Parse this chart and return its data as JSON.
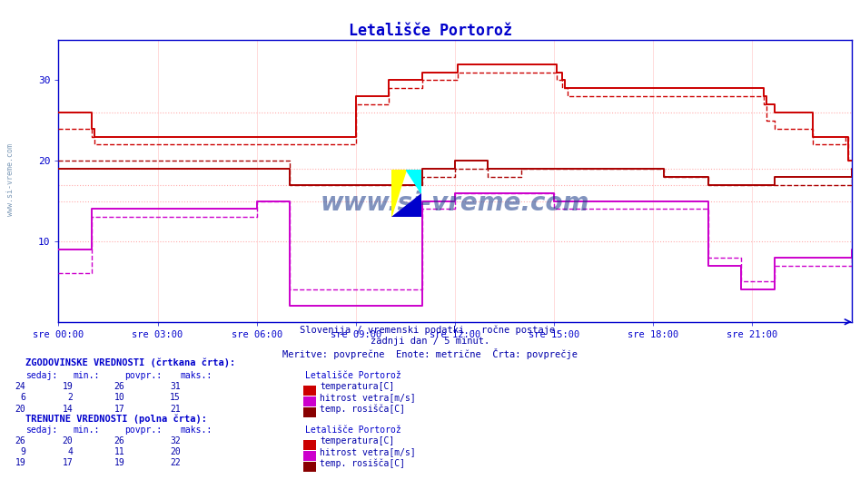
{
  "title": "Letališče Portorož",
  "title_color": "#0000cc",
  "title_fontsize": 12,
  "bg_color": "#ffffff",
  "plot_bg_color": "#ffffff",
  "axis_color": "#0000cc",
  "xlim": [
    0,
    288
  ],
  "ylim": [
    0,
    35
  ],
  "yticks": [
    10,
    20,
    30
  ],
  "xtick_labels": [
    "sre 00:00",
    "sre 03:00",
    "sre 06:00",
    "sre 09:00",
    "sre 12:00",
    "sre 15:00",
    "sre 18:00",
    "sre 21:00"
  ],
  "xtick_positions": [
    0,
    36,
    72,
    108,
    144,
    180,
    216,
    252
  ],
  "subtitle1": "Slovenija / vremenski podatki - ročne postaje.",
  "subtitle2": "zadnji dan / 5 minut.",
  "subtitle3": "Meritve: povprečne  Enote: metrične  Črta: povprečje",
  "subtitle_color": "#0000aa",
  "watermark": "www.si-vreme.com",
  "watermark_color": "#1a3a8a",
  "temp_solid_color": "#cc0000",
  "wind_solid_color": "#cc00cc",
  "dew_hist_color": "#aa0000",
  "dew_curr_color": "#aa0000",
  "hlines_red": [
    26,
    19
  ],
  "hlines_pink": [
    10,
    15,
    17
  ],
  "table_header_color": "#0000cc",
  "table_value_color": "#0000aa",
  "table_label_color": "#0000aa",
  "left_label_color": "#6688aa",
  "temp_hist_data": [
    24,
    24,
    24,
    24,
    24,
    24,
    24,
    24,
    24,
    24,
    24,
    24,
    23,
    22,
    22,
    22,
    22,
    22,
    22,
    22,
    22,
    22,
    22,
    22,
    22,
    22,
    22,
    22,
    22,
    22,
    22,
    22,
    22,
    22,
    22,
    22,
    22,
    22,
    22,
    22,
    22,
    22,
    22,
    22,
    22,
    22,
    22,
    22,
    22,
    22,
    22,
    22,
    22,
    22,
    22,
    22,
    22,
    22,
    22,
    22,
    22,
    22,
    22,
    22,
    22,
    22,
    22,
    22,
    22,
    22,
    22,
    22,
    22,
    22,
    22,
    22,
    22,
    22,
    22,
    22,
    22,
    22,
    22,
    22,
    22,
    22,
    22,
    22,
    22,
    22,
    22,
    22,
    22,
    22,
    22,
    22,
    22,
    22,
    22,
    22,
    22,
    22,
    22,
    22,
    22,
    22,
    22,
    22,
    27,
    27,
    27,
    27,
    27,
    27,
    27,
    27,
    27,
    27,
    27,
    27,
    29,
    29,
    29,
    29,
    29,
    29,
    29,
    29,
    29,
    29,
    29,
    29,
    30,
    30,
    30,
    30,
    30,
    30,
    30,
    30,
    30,
    30,
    30,
    30,
    30,
    31,
    31,
    31,
    31,
    31,
    31,
    31,
    31,
    31,
    31,
    31,
    31,
    31,
    31,
    31,
    31,
    31,
    31,
    31,
    31,
    31,
    31,
    31,
    31,
    31,
    31,
    31,
    31,
    31,
    31,
    31,
    31,
    31,
    31,
    31,
    31,
    30,
    30,
    29,
    29,
    28,
    28,
    28,
    28,
    28,
    28,
    28,
    28,
    28,
    28,
    28,
    28,
    28,
    28,
    28,
    28,
    28,
    28,
    28,
    28,
    28,
    28,
    28,
    28,
    28,
    28,
    28,
    28,
    28,
    28,
    28,
    28,
    28,
    28,
    28,
    28,
    28,
    28,
    28,
    28,
    28,
    28,
    28,
    28,
    28,
    28,
    28,
    28,
    28,
    28,
    28,
    28,
    28,
    28,
    28,
    28,
    28,
    28,
    28,
    28,
    28,
    28,
    28,
    28,
    28,
    28,
    28,
    28,
    28,
    28,
    28,
    27,
    25,
    25,
    25,
    24,
    24,
    24,
    24,
    24,
    24,
    24,
    24,
    24,
    24,
    24,
    24,
    24,
    24,
    22,
    22,
    22,
    22,
    22,
    22,
    22,
    22,
    22,
    22,
    22,
    22,
    23,
    20,
    20,
    20
  ],
  "wind_hist_data": [
    6,
    6,
    6,
    6,
    6,
    6,
    6,
    6,
    6,
    6,
    6,
    6,
    13,
    13,
    13,
    13,
    13,
    13,
    13,
    13,
    13,
    13,
    13,
    13,
    13,
    13,
    13,
    13,
    13,
    13,
    13,
    13,
    13,
    13,
    13,
    13,
    13,
    13,
    13,
    13,
    13,
    13,
    13,
    13,
    13,
    13,
    13,
    13,
    13,
    13,
    13,
    13,
    13,
    13,
    13,
    13,
    13,
    13,
    13,
    13,
    13,
    13,
    13,
    13,
    13,
    13,
    13,
    13,
    13,
    13,
    13,
    13,
    15,
    15,
    15,
    15,
    15,
    15,
    15,
    15,
    15,
    15,
    15,
    15,
    4,
    4,
    4,
    4,
    4,
    4,
    4,
    4,
    4,
    4,
    4,
    4,
    4,
    4,
    4,
    4,
    4,
    4,
    4,
    4,
    4,
    4,
    4,
    4,
    4,
    4,
    4,
    4,
    4,
    4,
    4,
    4,
    4,
    4,
    4,
    4,
    4,
    4,
    4,
    4,
    4,
    4,
    4,
    4,
    4,
    4,
    4,
    4,
    14,
    14,
    14,
    14,
    14,
    14,
    14,
    14,
    14,
    14,
    14,
    14,
    16,
    16,
    16,
    16,
    16,
    16,
    16,
    16,
    16,
    16,
    16,
    16,
    16,
    16,
    16,
    16,
    16,
    16,
    16,
    16,
    16,
    16,
    16,
    16,
    16,
    16,
    16,
    16,
    16,
    16,
    16,
    16,
    16,
    16,
    16,
    16,
    14,
    14,
    14,
    14,
    14,
    14,
    14,
    14,
    14,
    14,
    14,
    14,
    14,
    14,
    14,
    14,
    14,
    14,
    14,
    14,
    14,
    14,
    14,
    14,
    14,
    14,
    14,
    14,
    14,
    14,
    14,
    14,
    14,
    14,
    14,
    14,
    14,
    14,
    14,
    14,
    14,
    14,
    14,
    14,
    14,
    14,
    14,
    14,
    14,
    14,
    14,
    14,
    14,
    14,
    14,
    14,
    8,
    8,
    8,
    8,
    8,
    8,
    8,
    8,
    8,
    8,
    8,
    8,
    5,
    5,
    5,
    5,
    5,
    5,
    5,
    5,
    5,
    5,
    5,
    5,
    7,
    7,
    7,
    7,
    7,
    7,
    7,
    7,
    7,
    7,
    7,
    7,
    7,
    7,
    7,
    7,
    7,
    7,
    7,
    7,
    7,
    7,
    7,
    7,
    7,
    7,
    7,
    7,
    9,
    9
  ],
  "dew_hist_data": [
    20,
    20,
    20,
    20,
    20,
    20,
    20,
    20,
    20,
    20,
    20,
    20,
    20,
    20,
    20,
    20,
    20,
    20,
    20,
    20,
    20,
    20,
    20,
    20,
    20,
    20,
    20,
    20,
    20,
    20,
    20,
    20,
    20,
    20,
    20,
    20,
    20,
    20,
    20,
    20,
    20,
    20,
    20,
    20,
    20,
    20,
    20,
    20,
    20,
    20,
    20,
    20,
    20,
    20,
    20,
    20,
    20,
    20,
    20,
    20,
    20,
    20,
    20,
    20,
    20,
    20,
    20,
    20,
    20,
    20,
    20,
    20,
    20,
    20,
    20,
    20,
    20,
    20,
    20,
    20,
    20,
    20,
    20,
    20,
    17,
    17,
    17,
    17,
    17,
    17,
    17,
    17,
    17,
    17,
    17,
    17,
    17,
    17,
    17,
    17,
    17,
    17,
    17,
    17,
    17,
    17,
    17,
    17,
    17,
    17,
    17,
    17,
    17,
    17,
    17,
    17,
    17,
    17,
    17,
    17,
    17,
    17,
    17,
    17,
    17,
    17,
    17,
    17,
    17,
    17,
    17,
    17,
    18,
    18,
    18,
    18,
    18,
    18,
    18,
    18,
    18,
    18,
    18,
    18,
    19,
    19,
    19,
    19,
    19,
    19,
    19,
    19,
    19,
    19,
    19,
    19,
    18,
    18,
    18,
    18,
    18,
    18,
    18,
    18,
    18,
    18,
    18,
    18,
    19,
    19,
    19,
    19,
    19,
    19,
    19,
    19,
    19,
    19,
    19,
    19,
    19,
    19,
    19,
    19,
    19,
    19,
    19,
    19,
    19,
    19,
    19,
    19,
    19,
    19,
    19,
    19,
    19,
    19,
    19,
    19,
    19,
    19,
    19,
    19,
    19,
    19,
    19,
    19,
    19,
    19,
    19,
    19,
    19,
    19,
    19,
    19,
    19,
    19,
    19,
    19,
    18,
    18,
    18,
    18,
    18,
    18,
    18,
    18,
    18,
    18,
    18,
    18,
    18,
    18,
    18,
    18,
    17,
    17,
    17,
    17,
    17,
    17,
    17,
    17,
    17,
    17,
    17,
    17,
    17,
    17,
    17,
    17,
    17,
    17,
    17,
    17,
    17,
    17,
    17,
    17,
    17,
    17,
    17,
    17,
    17,
    17,
    17,
    17,
    17,
    17,
    17,
    17,
    17,
    17,
    17,
    17,
    17,
    17,
    17,
    17,
    17,
    17,
    17,
    17,
    17,
    17,
    17,
    17,
    19,
    19
  ],
  "temp_curr_data": [
    26,
    26,
    26,
    26,
    26,
    26,
    26,
    26,
    26,
    26,
    26,
    26,
    24,
    23,
    23,
    23,
    23,
    23,
    23,
    23,
    23,
    23,
    23,
    23,
    23,
    23,
    23,
    23,
    23,
    23,
    23,
    23,
    23,
    23,
    23,
    23,
    23,
    23,
    23,
    23,
    23,
    23,
    23,
    23,
    23,
    23,
    23,
    23,
    23,
    23,
    23,
    23,
    23,
    23,
    23,
    23,
    23,
    23,
    23,
    23,
    23,
    23,
    23,
    23,
    23,
    23,
    23,
    23,
    23,
    23,
    23,
    23,
    23,
    23,
    23,
    23,
    23,
    23,
    23,
    23,
    23,
    23,
    23,
    23,
    23,
    23,
    23,
    23,
    23,
    23,
    23,
    23,
    23,
    23,
    23,
    23,
    23,
    23,
    23,
    23,
    23,
    23,
    23,
    23,
    23,
    23,
    23,
    23,
    28,
    28,
    28,
    28,
    28,
    28,
    28,
    28,
    28,
    28,
    28,
    28,
    30,
    30,
    30,
    30,
    30,
    30,
    30,
    30,
    30,
    30,
    30,
    30,
    31,
    31,
    31,
    31,
    31,
    31,
    31,
    31,
    31,
    31,
    31,
    31,
    31,
    32,
    32,
    32,
    32,
    32,
    32,
    32,
    32,
    32,
    32,
    32,
    32,
    32,
    32,
    32,
    32,
    32,
    32,
    32,
    32,
    32,
    32,
    32,
    32,
    32,
    32,
    32,
    32,
    32,
    32,
    32,
    32,
    32,
    32,
    32,
    32,
    31,
    31,
    30,
    29,
    29,
    29,
    29,
    29,
    29,
    29,
    29,
    29,
    29,
    29,
    29,
    29,
    29,
    29,
    29,
    29,
    29,
    29,
    29,
    29,
    29,
    29,
    29,
    29,
    29,
    29,
    29,
    29,
    29,
    29,
    29,
    29,
    29,
    29,
    29,
    29,
    29,
    29,
    29,
    29,
    29,
    29,
    29,
    29,
    29,
    29,
    29,
    29,
    29,
    29,
    29,
    29,
    29,
    29,
    29,
    29,
    29,
    29,
    29,
    29,
    29,
    29,
    29,
    29,
    29,
    29,
    29,
    29,
    29,
    29,
    29,
    28,
    27,
    27,
    27,
    26,
    26,
    26,
    26,
    26,
    26,
    26,
    26,
    26,
    26,
    26,
    26,
    26,
    26,
    23,
    23,
    23,
    23,
    23,
    23,
    23,
    23,
    23,
    23,
    23,
    23,
    23,
    20,
    20,
    20
  ],
  "wind_curr_data": [
    9,
    9,
    9,
    9,
    9,
    9,
    9,
    9,
    9,
    9,
    9,
    9,
    14,
    14,
    14,
    14,
    14,
    14,
    14,
    14,
    14,
    14,
    14,
    14,
    14,
    14,
    14,
    14,
    14,
    14,
    14,
    14,
    14,
    14,
    14,
    14,
    14,
    14,
    14,
    14,
    14,
    14,
    14,
    14,
    14,
    14,
    14,
    14,
    14,
    14,
    14,
    14,
    14,
    14,
    14,
    14,
    14,
    14,
    14,
    14,
    14,
    14,
    14,
    14,
    14,
    14,
    14,
    14,
    14,
    14,
    14,
    14,
    15,
    15,
    15,
    15,
    15,
    15,
    15,
    15,
    15,
    15,
    15,
    15,
    2,
    2,
    2,
    2,
    2,
    2,
    2,
    2,
    2,
    2,
    2,
    2,
    2,
    2,
    2,
    2,
    2,
    2,
    2,
    2,
    2,
    2,
    2,
    2,
    2,
    2,
    2,
    2,
    2,
    2,
    2,
    2,
    2,
    2,
    2,
    2,
    2,
    2,
    2,
    2,
    2,
    2,
    2,
    2,
    2,
    2,
    2,
    2,
    15,
    15,
    15,
    15,
    15,
    15,
    15,
    15,
    15,
    15,
    15,
    15,
    16,
    16,
    16,
    16,
    16,
    16,
    16,
    16,
    16,
    16,
    16,
    16,
    16,
    16,
    16,
    16,
    16,
    16,
    16,
    16,
    16,
    16,
    16,
    16,
    16,
    16,
    16,
    16,
    16,
    16,
    16,
    16,
    16,
    16,
    16,
    16,
    15,
    15,
    15,
    15,
    15,
    15,
    15,
    15,
    15,
    15,
    15,
    15,
    15,
    15,
    15,
    15,
    15,
    15,
    15,
    15,
    15,
    15,
    15,
    15,
    15,
    15,
    15,
    15,
    15,
    15,
    15,
    15,
    15,
    15,
    15,
    15,
    15,
    15,
    15,
    15,
    15,
    15,
    15,
    15,
    15,
    15,
    15,
    15,
    15,
    15,
    15,
    15,
    15,
    15,
    15,
    15,
    7,
    7,
    7,
    7,
    7,
    7,
    7,
    7,
    7,
    7,
    7,
    7,
    4,
    4,
    4,
    4,
    4,
    4,
    4,
    4,
    4,
    4,
    4,
    4,
    8,
    8,
    8,
    8,
    8,
    8,
    8,
    8,
    8,
    8,
    8,
    8,
    8,
    8,
    8,
    8,
    8,
    8,
    8,
    8,
    8,
    8,
    8,
    8,
    8,
    8,
    8,
    8,
    9,
    9
  ],
  "dew_curr_data": [
    19,
    19,
    19,
    19,
    19,
    19,
    19,
    19,
    19,
    19,
    19,
    19,
    19,
    19,
    19,
    19,
    19,
    19,
    19,
    19,
    19,
    19,
    19,
    19,
    19,
    19,
    19,
    19,
    19,
    19,
    19,
    19,
    19,
    19,
    19,
    19,
    19,
    19,
    19,
    19,
    19,
    19,
    19,
    19,
    19,
    19,
    19,
    19,
    19,
    19,
    19,
    19,
    19,
    19,
    19,
    19,
    19,
    19,
    19,
    19,
    19,
    19,
    19,
    19,
    19,
    19,
    19,
    19,
    19,
    19,
    19,
    19,
    19,
    19,
    19,
    19,
    19,
    19,
    19,
    19,
    19,
    19,
    19,
    19,
    17,
    17,
    17,
    17,
    17,
    17,
    17,
    17,
    17,
    17,
    17,
    17,
    17,
    17,
    17,
    17,
    17,
    17,
    17,
    17,
    17,
    17,
    17,
    17,
    17,
    17,
    17,
    17,
    17,
    17,
    17,
    17,
    17,
    17,
    17,
    17,
    17,
    17,
    17,
    17,
    17,
    17,
    17,
    17,
    17,
    17,
    17,
    17,
    19,
    19,
    19,
    19,
    19,
    19,
    19,
    19,
    19,
    19,
    19,
    19,
    20,
    20,
    20,
    20,
    20,
    20,
    20,
    20,
    20,
    20,
    20,
    20,
    19,
    19,
    19,
    19,
    19,
    19,
    19,
    19,
    19,
    19,
    19,
    19,
    19,
    19,
    19,
    19,
    19,
    19,
    19,
    19,
    19,
    19,
    19,
    19,
    19,
    19,
    19,
    19,
    19,
    19,
    19,
    19,
    19,
    19,
    19,
    19,
    19,
    19,
    19,
    19,
    19,
    19,
    19,
    19,
    19,
    19,
    19,
    19,
    19,
    19,
    19,
    19,
    19,
    19,
    19,
    19,
    19,
    19,
    19,
    19,
    19,
    19,
    19,
    19,
    18,
    18,
    18,
    18,
    18,
    18,
    18,
    18,
    18,
    18,
    18,
    18,
    18,
    18,
    18,
    18,
    17,
    17,
    17,
    17,
    17,
    17,
    17,
    17,
    17,
    17,
    17,
    17,
    17,
    17,
    17,
    17,
    17,
    17,
    17,
    17,
    17,
    17,
    17,
    17,
    18,
    18,
    18,
    18,
    18,
    18,
    18,
    18,
    18,
    18,
    18,
    18,
    18,
    18,
    18,
    18,
    18,
    18,
    18,
    18,
    18,
    18,
    18,
    18,
    18,
    18,
    18,
    18,
    19,
    19
  ],
  "hist_table": {
    "sedaj": [
      24,
      6,
      20
    ],
    "min": [
      19,
      2,
      14
    ],
    "povpr": [
      26,
      10,
      17
    ],
    "maks": [
      31,
      15,
      21
    ],
    "labels": [
      "temperatura[C]",
      "hitrost vetra[m/s]",
      "temp. rosišča[C]"
    ],
    "colors": [
      "#cc0000",
      "#cc00cc",
      "#880000"
    ]
  },
  "curr_table": {
    "sedaj": [
      26,
      9,
      19
    ],
    "min": [
      20,
      4,
      17
    ],
    "povpr": [
      26,
      11,
      19
    ],
    "maks": [
      32,
      20,
      22
    ],
    "labels": [
      "temperatura[C]",
      "hitrost vetra[m/s]",
      "temp. rosišča[C]"
    ],
    "colors": [
      "#cc0000",
      "#cc00cc",
      "#880000"
    ]
  }
}
